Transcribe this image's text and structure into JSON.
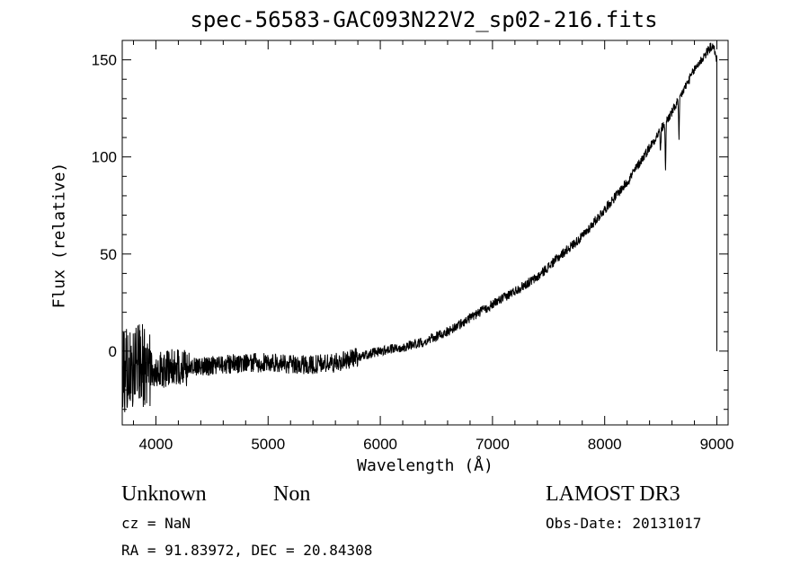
{
  "chart_data": {
    "type": "line",
    "title": "spec-56583-GAC093N22V2_sp02-216.fits",
    "xlabel": "Wavelength (Å)",
    "ylabel": "Flux (relative)",
    "xlim": [
      3700,
      9100
    ],
    "ylim": [
      -38,
      160
    ],
    "xticks": [
      4000,
      5000,
      6000,
      7000,
      8000,
      9000
    ],
    "yticks": [
      0,
      50,
      100,
      150
    ],
    "x_minor_step": 200,
    "y_minor_step": 10,
    "series": [
      {
        "name": "flux",
        "anchors": [
          [
            3700,
            -10
          ],
          [
            3800,
            -8
          ],
          [
            3900,
            -8
          ],
          [
            4000,
            -9
          ],
          [
            4200,
            -9
          ],
          [
            4400,
            -8
          ],
          [
            4600,
            -7
          ],
          [
            4800,
            -6
          ],
          [
            5000,
            -6
          ],
          [
            5200,
            -7
          ],
          [
            5400,
            -7
          ],
          [
            5600,
            -6
          ],
          [
            5800,
            -3
          ],
          [
            6000,
            0
          ],
          [
            6200,
            2
          ],
          [
            6400,
            5
          ],
          [
            6600,
            10
          ],
          [
            6800,
            17
          ],
          [
            7000,
            24
          ],
          [
            7200,
            31
          ],
          [
            7400,
            38
          ],
          [
            7600,
            49
          ],
          [
            7800,
            59
          ],
          [
            8000,
            73
          ],
          [
            8200,
            87
          ],
          [
            8400,
            105
          ],
          [
            8600,
            123
          ],
          [
            8800,
            145
          ],
          [
            8950,
            157
          ],
          [
            8980,
            155
          ],
          [
            9000,
            150
          ]
        ],
        "features": [
          {
            "x": 8498,
            "depth": 12
          },
          {
            "x": 8542,
            "depth": 26
          },
          {
            "x": 8662,
            "depth": 24
          }
        ],
        "noise": [
          {
            "x_from": 3700,
            "x_to": 3950,
            "amplitude": 22
          },
          {
            "x_from": 3950,
            "x_to": 4300,
            "amplitude": 10
          },
          {
            "x_from": 4300,
            "x_to": 5800,
            "amplitude": 5
          },
          {
            "x_from": 5800,
            "x_to": 9000,
            "amplitude": 2.5
          }
        ],
        "cutoff": {
          "x": 9000,
          "drop_to": 0
        }
      }
    ]
  },
  "info": {
    "object_class": "Unknown",
    "subclass": "Non",
    "survey": "LAMOST DR3",
    "redshift": "cz = NaN",
    "obs_date": "Obs-Date: 20131017",
    "coords": "RA =  91.83972, DEC =  20.84308"
  },
  "colors": {
    "background": "#ffffff",
    "foreground": "#000000"
  }
}
